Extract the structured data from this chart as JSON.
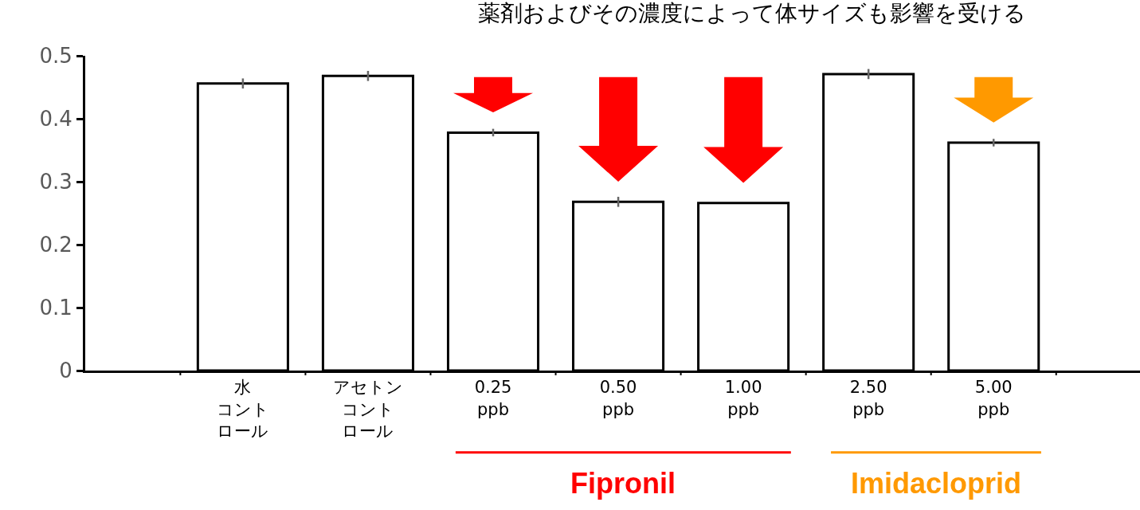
{
  "chart_data": {
    "type": "bar",
    "title": "薬剤およびその濃度によって体サイズも影響を受ける",
    "categories": [
      "水コントロール",
      "アセトンコントロール",
      "0.25\nppb",
      "0.50\nppb",
      "1.00\nppb",
      "2.50\nppb",
      "5.00\nppb"
    ],
    "values": [
      0.456,
      0.468,
      0.378,
      0.268,
      0.266,
      0.471,
      0.362
    ],
    "errors": [
      0.008,
      0.008,
      0.006,
      0.008,
      null,
      0.008,
      0.006
    ],
    "color": "#ffffff",
    "ylim": [
      0,
      0.5
    ],
    "yticks": [
      0,
      0.1,
      0.2,
      0.3,
      0.4,
      0.5
    ],
    "grid": false,
    "annotations": [
      "Fipronil",
      "Imidacloprid"
    ]
  }
}
